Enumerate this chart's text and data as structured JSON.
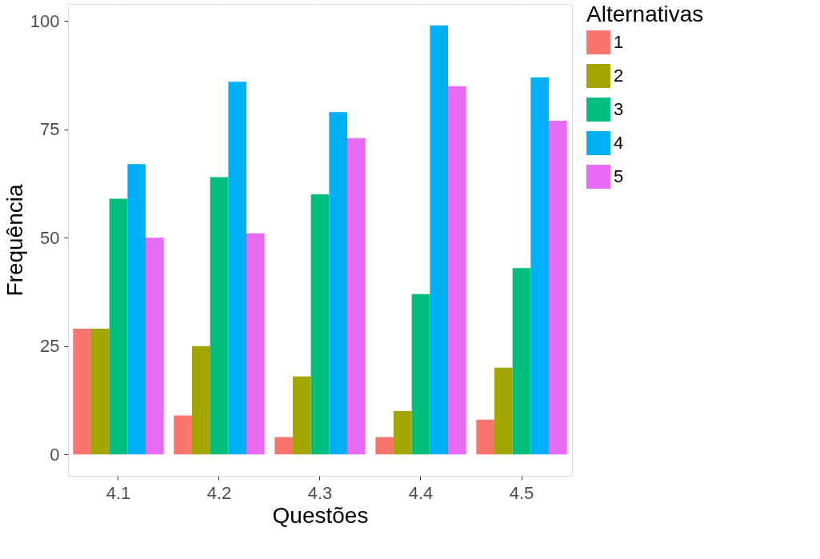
{
  "chart_data": {
    "type": "bar",
    "xlabel": "Questões",
    "ylabel": "Frequência",
    "legend_title": "Alternativas",
    "categories": [
      "4.1",
      "4.2",
      "4.3",
      "4.4",
      "4.5"
    ],
    "series": [
      {
        "name": "1",
        "color": "#f8766d",
        "values": [
          29,
          9,
          4,
          4,
          8
        ]
      },
      {
        "name": "2",
        "color": "#a3a500",
        "values": [
          29,
          25,
          18,
          10,
          20
        ]
      },
      {
        "name": "3",
        "color": "#00bf7d",
        "values": [
          59,
          64,
          60,
          37,
          43
        ]
      },
      {
        "name": "4",
        "color": "#00b0f6",
        "values": [
          67,
          86,
          79,
          99,
          87
        ]
      },
      {
        "name": "5",
        "color": "#e76bf3",
        "values": [
          50,
          51,
          73,
          85,
          77
        ]
      }
    ],
    "ylim": [
      -4.95,
      103.95
    ],
    "yticks": [
      0,
      25,
      50,
      75,
      100
    ],
    "grid": true,
    "legend": "right"
  }
}
